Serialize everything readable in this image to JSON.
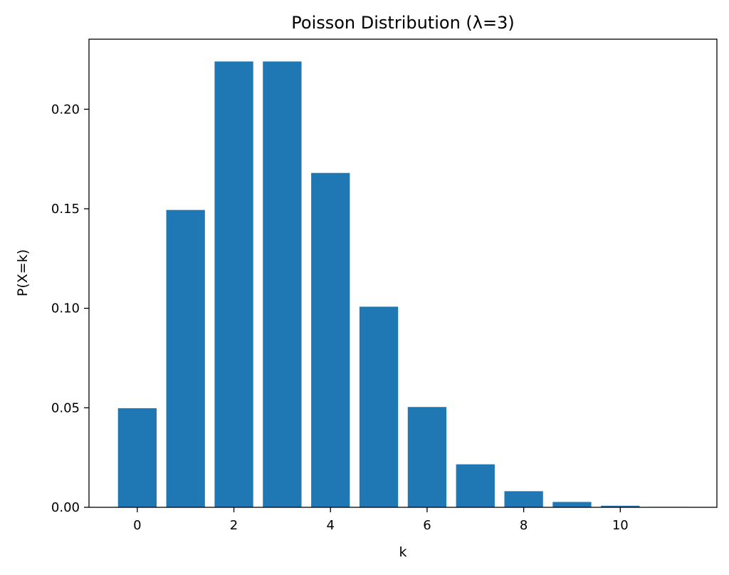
{
  "chart_data": {
    "type": "bar",
    "title": "Poisson Distribution (λ=3)",
    "xlabel": "k",
    "ylabel": "P(X=k)",
    "x": [
      0,
      1,
      2,
      3,
      4,
      5,
      6,
      7,
      8,
      9,
      10,
      11
    ],
    "values": [
      0.0498,
      0.1494,
      0.224,
      0.224,
      0.168,
      0.1008,
      0.0504,
      0.0216,
      0.0081,
      0.0027,
      0.0008,
      0.0002
    ],
    "xlim": [
      -1.0,
      12.0
    ],
    "ylim": [
      0.0,
      0.2352
    ],
    "xticks": [
      "0",
      "2",
      "4",
      "6",
      "8",
      "10"
    ],
    "yticks": [
      "0.00",
      "0.05",
      "0.10",
      "0.15",
      "0.20"
    ],
    "bar_color": "#1f77b4",
    "grid": false,
    "legend": "none"
  }
}
